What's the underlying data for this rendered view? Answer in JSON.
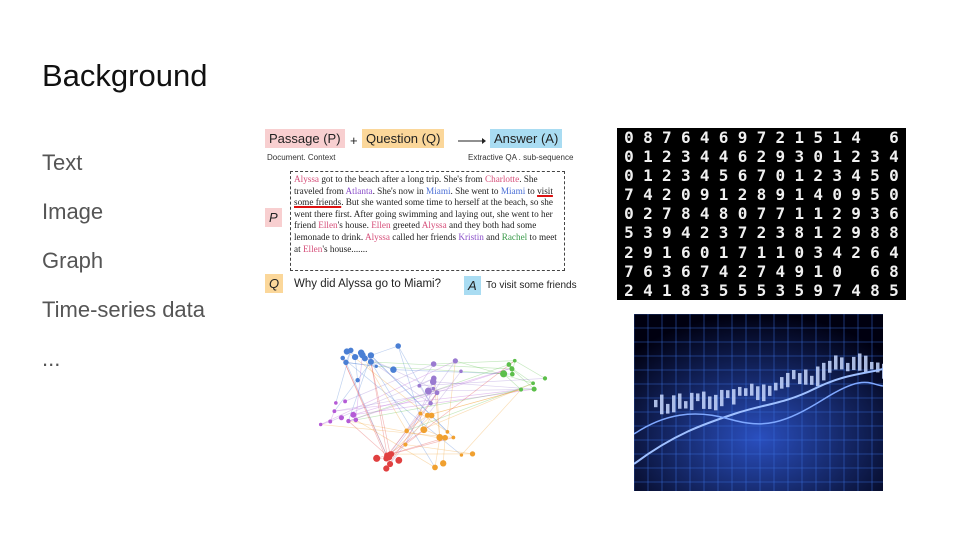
{
  "slide": {
    "title": "Background",
    "bullets": [
      "Text",
      "Image",
      "Graph",
      "Time-series data",
      "..."
    ]
  },
  "qa_figure": {
    "passage_label": "Passage (P)",
    "question_label": "Question (Q)",
    "answer_label": "Answer (A)",
    "plus": "+",
    "passage_caption": "Document. Context",
    "answer_caption": "Extractive QA . sub-sequence",
    "side_p": "P",
    "side_q": "Q",
    "side_a": "A",
    "question_text": "Why did Alyssa go to Miami?",
    "answer_text": "To visit some friends",
    "colors": {
      "passage": "#f8cfd0",
      "question": "#fbd79a",
      "answer": "#a9dcf2"
    }
  },
  "mnist": {
    "rows": [
      "0876469721514 6",
      "012344629301234",
      "012345670123450",
      "742091289140950",
      "027848077112936",
      "539423723812988",
      "291601711034264",
      "763674274910 68",
      "241835553597485"
    ]
  }
}
